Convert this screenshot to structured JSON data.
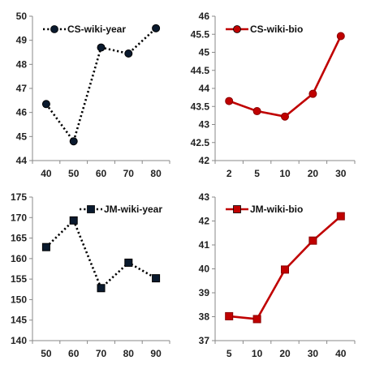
{
  "chart_data": [
    {
      "type": "line",
      "categories": [
        "40",
        "50",
        "60",
        "70",
        "80"
      ],
      "series": [
        {
          "name": "CS-wiki-year",
          "values": [
            46.35,
            44.8,
            48.7,
            48.45,
            49.5
          ]
        }
      ],
      "ylim": [
        44,
        50
      ],
      "yticks": [
        "44",
        "45",
        "46",
        "47",
        "48",
        "49",
        "50"
      ],
      "style": {
        "color": "#000000",
        "dash": "dotted",
        "marker": "circle"
      },
      "legend_position": "top-left"
    },
    {
      "type": "line",
      "categories": [
        "2",
        "5",
        "10",
        "20",
        "30"
      ],
      "series": [
        {
          "name": "CS-wiki-bio",
          "values": [
            43.65,
            43.37,
            43.22,
            43.85,
            45.45
          ]
        }
      ],
      "ylim": [
        42,
        46
      ],
      "yticks": [
        "42",
        "42.5",
        "43",
        "43.5",
        "44",
        "44.5",
        "45",
        "45.5",
        "46"
      ],
      "style": {
        "color": "#C00000",
        "dash": "solid",
        "marker": "circle"
      },
      "legend_position": "top-left"
    },
    {
      "type": "line",
      "categories": [
        "50",
        "60",
        "70",
        "80",
        "90"
      ],
      "series": [
        {
          "name": "JM-wiki-year",
          "values": [
            162.8,
            169.3,
            152.8,
            159.0,
            155.2
          ]
        }
      ],
      "ylim": [
        140,
        175
      ],
      "yticks": [
        "140",
        "145",
        "150",
        "155",
        "160",
        "165",
        "170",
        "175"
      ],
      "style": {
        "color": "#000000",
        "dash": "dotted",
        "marker": "square"
      },
      "legend_position": "top-right"
    },
    {
      "type": "line",
      "categories": [
        "5",
        "10",
        "20",
        "30",
        "40"
      ],
      "series": [
        {
          "name": "JM-wiki-bio",
          "values": [
            38.02,
            37.9,
            39.97,
            41.18,
            42.2
          ]
        }
      ],
      "ylim": [
        37,
        43
      ],
      "yticks": [
        "37",
        "38",
        "39",
        "40",
        "41",
        "42",
        "43"
      ],
      "style": {
        "color": "#C00000",
        "dash": "solid",
        "marker": "square"
      },
      "legend_position": "top-left"
    }
  ]
}
